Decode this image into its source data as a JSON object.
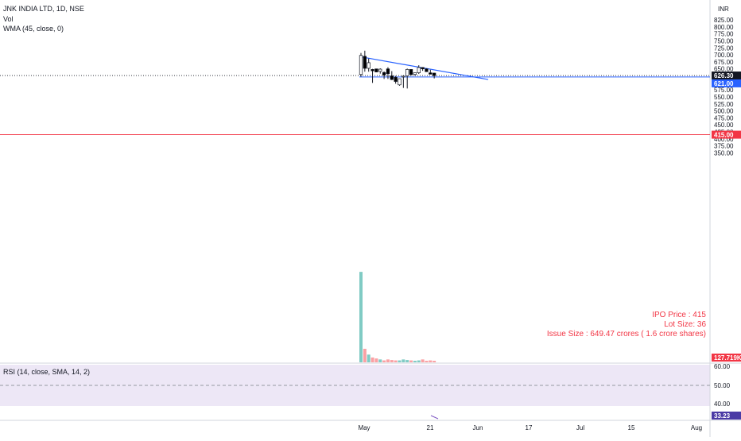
{
  "header": {
    "symbol_line": "JNK INDIA LTD, 1D, NSE",
    "vol_label": "Vol",
    "wma_label": "WMA (45, close, 0)",
    "rsi_label": "RSI (14, close, SMA, 14, 2)"
  },
  "price_axis": {
    "currency": "INR",
    "ticks": [
      "825.00",
      "800.00",
      "775.00",
      "750.00",
      "725.00",
      "700.00",
      "675.00",
      "650.00",
      "625.00",
      "600.00",
      "575.00",
      "550.00",
      "525.00",
      "500.00",
      "475.00",
      "450.00",
      "425.00",
      "400.00",
      "375.00",
      "350.00"
    ],
    "badges": {
      "last_price": "626.30",
      "trend_level": "621.00",
      "ipo_level": "415.00",
      "volume": "127.719K",
      "rsi": "33.23"
    }
  },
  "rsi_axis": {
    "ticks": [
      "60.00",
      "50.00",
      "40.00"
    ]
  },
  "time_axis": {
    "ticks": [
      "May",
      "21",
      "Jun",
      "17",
      "Jul",
      "15",
      "Aug"
    ]
  },
  "annotations": {
    "ipo_price": "IPO Price : 415",
    "lot_size": "Lot Size: 36",
    "issue_size": "Issue Size : 649.47 crores ( 1.6 crore shares)"
  },
  "colors": {
    "up": "#ffffff",
    "down": "#000000",
    "wick": "#131722",
    "trendline": "#2962ff",
    "ipo_line": "#f23645",
    "vol_up": "#80cbc4",
    "vol_down": "#faa1a4",
    "rsi_band": "#ede7f6",
    "last_price_badge": "#131722",
    "trend_badge": "#2962ff",
    "ipo_badge": "#f23645",
    "volume_badge": "#f23645",
    "rsi_badge": "#4a3aa5"
  },
  "chart_data": {
    "type": "candlestick",
    "y_range": [
      340,
      835
    ],
    "candles": [
      {
        "open": 630,
        "high": 707,
        "low": 622,
        "close": 698,
        "volume": 467
      },
      {
        "open": 695,
        "high": 715,
        "low": 640,
        "close": 652,
        "volume": 70
      },
      {
        "open": 652,
        "high": 687,
        "low": 640,
        "close": 672,
        "volume": 40
      },
      {
        "open": 648,
        "high": 650,
        "low": 600,
        "close": 643,
        "volume": 25
      },
      {
        "open": 650,
        "high": 650,
        "low": 639,
        "close": 639,
        "volume": 20
      },
      {
        "open": 641,
        "high": 652,
        "low": 633,
        "close": 649,
        "volume": 15
      },
      {
        "open": 637,
        "high": 641,
        "low": 614,
        "close": 628,
        "volume": 10
      },
      {
        "open": 650,
        "high": 656,
        "low": 614,
        "close": 633,
        "volume": 15
      },
      {
        "open": 625,
        "high": 642,
        "low": 610,
        "close": 612,
        "volume": 12
      },
      {
        "open": 620,
        "high": 625,
        "low": 597,
        "close": 605,
        "volume": 10
      },
      {
        "open": 593,
        "high": 612,
        "low": 590,
        "close": 615,
        "volume": 10
      },
      {
        "open": 621,
        "high": 623,
        "low": 582,
        "close": 624,
        "volume": 15
      },
      {
        "open": 625,
        "high": 651,
        "low": 580,
        "close": 648,
        "volume": 12
      },
      {
        "open": 648,
        "high": 648,
        "low": 626,
        "close": 630,
        "volume": 10
      },
      {
        "open": 630,
        "high": 636,
        "low": 626,
        "close": 636,
        "volume": 8
      },
      {
        "open": 636,
        "high": 663,
        "low": 632,
        "close": 655,
        "volume": 10
      },
      {
        "open": 655,
        "high": 655,
        "low": 643,
        "close": 650,
        "volume": 15
      },
      {
        "open": 650,
        "high": 652,
        "low": 640,
        "close": 640,
        "volume": 8
      },
      {
        "open": 636,
        "high": 647,
        "low": 631,
        "close": 631,
        "volume": 10
      },
      {
        "open": 635,
        "high": 636,
        "low": 616,
        "close": 626,
        "volume": 8
      }
    ],
    "trendline": {
      "start_candle": 0,
      "start_price": 693,
      "end_candle": 33,
      "end_price": 612
    },
    "support_line": {
      "price": 621
    },
    "last_price_line": {
      "price": 626.3
    },
    "ipo_line": {
      "price": 415
    },
    "rsi": {
      "range": [
        35,
        65
      ],
      "value": 33.23
    }
  }
}
